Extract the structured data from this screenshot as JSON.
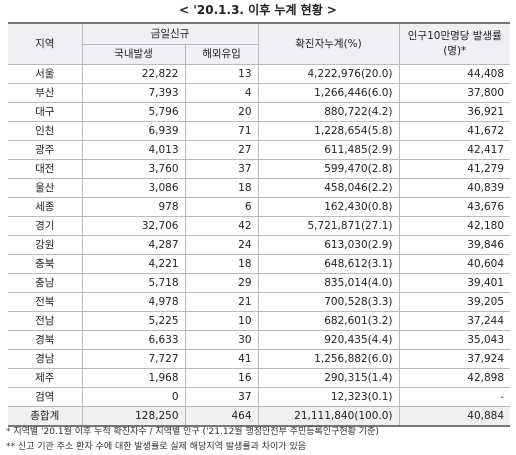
{
  "title": "< '20.1.3. 이후 누계 현황 >",
  "table": {
    "header": {
      "region": "지역",
      "new_group": "금일신규",
      "domestic": "국내발생",
      "overseas": "해외유입",
      "cumulative": "확진자누계(%)",
      "rate": "인구10만명당 발생률(명)*"
    },
    "rows": [
      [
        "서울",
        "22,822",
        "13",
        "4,222,976(20.0)",
        "44,408"
      ],
      [
        "부산",
        "7,393",
        "4",
        "1,266,446(6.0)",
        "37,800"
      ],
      [
        "대구",
        "5,796",
        "20",
        "880,722(4.2)",
        "36,921"
      ],
      [
        "인천",
        "6,939",
        "71",
        "1,228,654(5.8)",
        "41,672"
      ],
      [
        "광주",
        "4,013",
        "27",
        "611,485(2.9)",
        "42,417"
      ],
      [
        "대전",
        "3,760",
        "37",
        "599,470(2.8)",
        "41,279"
      ],
      [
        "울산",
        "3,086",
        "18",
        "458,046(2.2)",
        "40,839"
      ],
      [
        "세종",
        "978",
        "6",
        "162,430(0.8)",
        "43,676"
      ],
      [
        "경기",
        "32,706",
        "42",
        "5,721,871(27.1)",
        "42,180"
      ],
      [
        "강원",
        "4,287",
        "24",
        "613,030(2.9)",
        "39,846"
      ],
      [
        "충북",
        "4,221",
        "18",
        "648,612(3.1)",
        "40,604"
      ],
      [
        "충남",
        "5,718",
        "29",
        "835,014(4.0)",
        "39,401"
      ],
      [
        "전북",
        "4,978",
        "21",
        "700,528(3.3)",
        "39,205"
      ],
      [
        "전남",
        "5,225",
        "10",
        "682,601(3.2)",
        "37,244"
      ],
      [
        "경북",
        "6,633",
        "30",
        "920,435(4.4)",
        "35,043"
      ],
      [
        "경남",
        "7,727",
        "41",
        "1,256,882(6.0)",
        "37,924"
      ],
      [
        "제주",
        "1,968",
        "16",
        "290,315(1.4)",
        "42,898"
      ],
      [
        "검역",
        "0",
        "37",
        "12,323(0.1)",
        "-"
      ],
      [
        "총합계",
        "128,250",
        "464",
        "21,111,840(100.0)",
        "40,884"
      ]
    ]
  },
  "footnotes": [
    "* 지역별 '20.1월 이후 누적 확진자수 / 지역별 인구 ('21.12월 행정안전부 주민등록인구현황 기준)",
    "** 신고 기관 주소 환자 수에 대한 발생률로 실제 해당지역 발생률과 차이가 있음"
  ]
}
